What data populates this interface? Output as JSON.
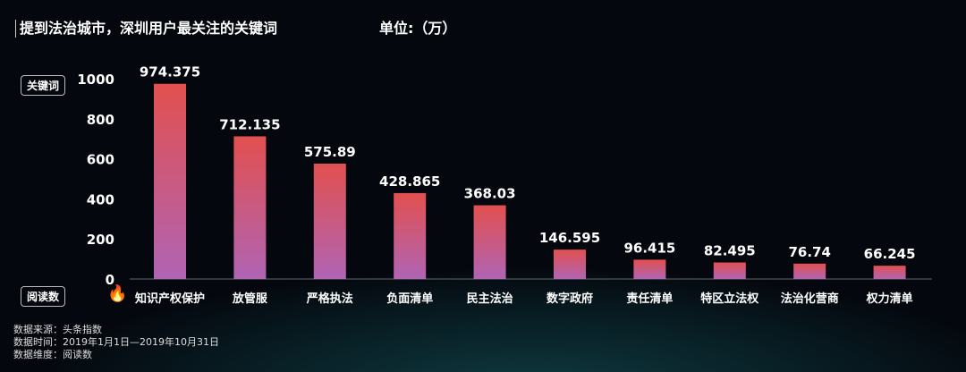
{
  "title": "提到法治城市，深圳用户最关注的关键词",
  "unit": "单位:（万）",
  "x_tag": "关键词",
  "y_tag": "阅读数",
  "notes": [
    "数据来源：头条指数",
    "数据时间：2019年1月1日—2019年10月31日",
    "数据维度：阅读数"
  ],
  "icon": "fire-icon",
  "colors": {
    "bar_top": "#e2504f",
    "bar_bottom": "#b064b4"
  },
  "chart_data": {
    "type": "bar",
    "categories": [
      "知识产权保护",
      "放管服",
      "严格执法",
      "负面清单",
      "民主法治",
      "数字政府",
      "责任清单",
      "特区立法权",
      "法治化营商",
      "权力清单"
    ],
    "values": [
      974.375,
      712.135,
      575.89,
      428.865,
      368.03,
      146.595,
      96.415,
      82.495,
      76.74,
      66.245
    ],
    "data_labels": [
      "974.375",
      "712.135",
      "575.89",
      "428.865",
      "368.03",
      "146.595",
      "96.415",
      "82.495",
      "76.74",
      "66.245"
    ],
    "yticks": [
      "0",
      "200",
      "400",
      "600",
      "800",
      "1000"
    ],
    "ylim": [
      0,
      1000
    ],
    "grid": false
  }
}
